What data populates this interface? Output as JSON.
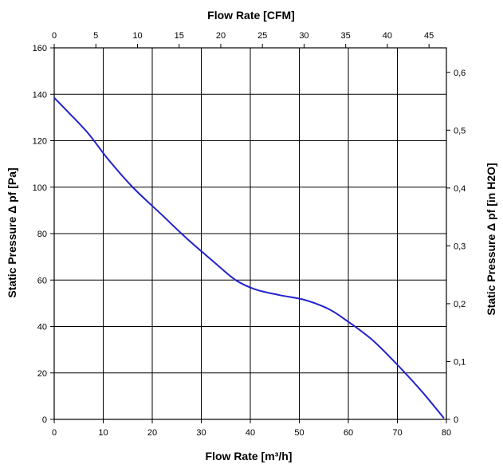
{
  "chart_data": {
    "type": "line",
    "x_bottom": {
      "label": "Flow Rate [m³/h]",
      "range": [
        0,
        80
      ],
      "ticks": [
        "0",
        "10",
        "20",
        "30",
        "40",
        "50",
        "60",
        "70",
        "80"
      ]
    },
    "x_top": {
      "label": "Flow Rate [CFM]",
      "range": [
        0,
        47.09
      ],
      "ticks": [
        "0",
        "5",
        "10",
        "15",
        "20",
        "25",
        "30",
        "35",
        "40",
        "45"
      ]
    },
    "y_left": {
      "label": "Static Pressure Δ pf [Pa]",
      "range": [
        0,
        160
      ],
      "ticks": [
        "0",
        "20",
        "40",
        "60",
        "80",
        "100",
        "120",
        "140",
        "160"
      ]
    },
    "y_right": {
      "label": "Static Pressure Δ pf [in H2O]",
      "range": [
        0,
        0.6424
      ],
      "ticks": [
        "0",
        "0,1",
        "0,2",
        "0,3",
        "0,4",
        "0,5",
        "0,6"
      ]
    },
    "grid": true,
    "series": [
      {
        "color": "#2222cc",
        "x": [
          0,
          3,
          7,
          11,
          16,
          22,
          27,
          33,
          37,
          41,
          46,
          51,
          56,
          60,
          65,
          70,
          75,
          79.5
        ],
        "y": [
          138.5,
          132,
          123,
          112,
          100,
          88,
          78,
          67,
          60,
          56,
          53.5,
          51.5,
          47.5,
          42,
          34,
          23.5,
          12,
          0.5
        ]
      }
    ]
  }
}
